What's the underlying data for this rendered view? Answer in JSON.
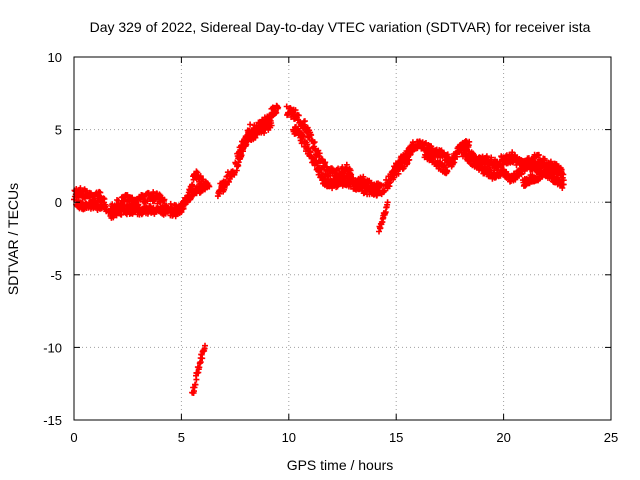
{
  "chart_data": {
    "type": "scatter",
    "title": "Day 329 of 2022, Sidereal Day-to-day VTEC variation (SDTVAR) for receiver ista",
    "xlabel": "GPS time / hours",
    "ylabel": "SDTVAR / TECUs",
    "xlim": [
      0,
      25
    ],
    "ylim": [
      -15,
      10
    ],
    "xticks": [
      0,
      5,
      10,
      15,
      20,
      25
    ],
    "yticks": [
      -15,
      -10,
      -5,
      0,
      5,
      10
    ],
    "xtick_labels": [
      "0",
      "5",
      "10",
      "15",
      "20",
      "25"
    ],
    "ytick_labels": [
      "-15",
      "-10",
      "-5",
      "0",
      "5",
      "10"
    ],
    "grid": true,
    "marker": "+",
    "series": [
      {
        "name": "SDTVAR",
        "color": "#ff0000",
        "tracks": [
          {
            "points": [
              [
                0.0,
                0.5
              ],
              [
                0.3,
                0.7
              ],
              [
                0.6,
                0.5
              ],
              [
                0.9,
                0.3
              ],
              [
                1.2,
                0.4
              ],
              [
                1.4,
                0.0
              ],
              [
                1.5,
                -0.4
              ]
            ],
            "spread": 0.35
          },
          {
            "points": [
              [
                0.1,
                -0.1
              ],
              [
                0.5,
                -0.3
              ],
              [
                0.9,
                -0.2
              ],
              [
                1.3,
                -0.4
              ]
            ],
            "spread": 0.25
          },
          {
            "points": [
              [
                1.6,
                -0.6
              ],
              [
                2.0,
                -0.2
              ],
              [
                2.4,
                0.2
              ],
              [
                2.8,
                0.0
              ],
              [
                3.2,
                0.2
              ],
              [
                3.6,
                0.4
              ],
              [
                4.0,
                0.2
              ],
              [
                4.3,
                -0.1
              ]
            ],
            "spread": 0.35
          },
          {
            "points": [
              [
                1.7,
                -0.8
              ],
              [
                2.2,
                -0.6
              ],
              [
                2.7,
                -0.5
              ],
              [
                3.2,
                -0.6
              ],
              [
                3.7,
                -0.5
              ],
              [
                4.2,
                -0.6
              ],
              [
                4.8,
                -0.7
              ],
              [
                5.0,
                -0.5
              ]
            ],
            "spread": 0.3
          },
          {
            "points": [
              [
                4.5,
                -0.4
              ],
              [
                4.9,
                -0.6
              ],
              [
                5.1,
                -0.2
              ],
              [
                5.3,
                0.5
              ],
              [
                5.5,
                1.4
              ],
              [
                5.7,
                1.8
              ],
              [
                5.9,
                1.5
              ],
              [
                6.1,
                1.2
              ],
              [
                6.3,
                1.4
              ]
            ],
            "spread": 0.35
          },
          {
            "points": [
              [
                5.0,
                -0.3
              ],
              [
                5.3,
                0.2
              ],
              [
                5.6,
                0.8
              ],
              [
                5.9,
                0.9
              ],
              [
                6.1,
                1.0
              ]
            ],
            "spread": 0.25
          },
          {
            "points": [
              [
                6.7,
                0.7
              ],
              [
                6.9,
                1.0
              ],
              [
                7.1,
                1.6
              ],
              [
                7.3,
                2.0
              ],
              [
                7.6,
                2.6
              ],
              [
                7.8,
                3.5
              ],
              [
                8.0,
                4.2
              ],
              [
                8.2,
                4.9
              ],
              [
                8.5,
                5.2
              ],
              [
                8.8,
                5.3
              ],
              [
                9.0,
                5.6
              ],
              [
                9.3,
                6.4
              ],
              [
                9.5,
                6.7
              ]
            ],
            "spread": 0.45
          },
          {
            "points": [
              [
                7.6,
                3.0
              ],
              [
                7.8,
                3.8
              ],
              [
                8.1,
                4.5
              ],
              [
                8.4,
                4.7
              ],
              [
                8.7,
                4.9
              ],
              [
                9.0,
                5.2
              ],
              [
                9.2,
                5.5
              ]
            ],
            "spread": 0.35
          },
          {
            "points": [
              [
                9.9,
                6.3
              ],
              [
                10.2,
                6.1
              ],
              [
                10.6,
                5.6
              ],
              [
                10.9,
                4.8
              ],
              [
                11.2,
                3.8
              ],
              [
                11.5,
                2.8
              ],
              [
                11.8,
                2.1
              ],
              [
                12.1,
                1.9
              ],
              [
                12.4,
                2.0
              ],
              [
                12.7,
                2.2
              ],
              [
                12.9,
                2.1
              ]
            ],
            "spread": 0.4
          },
          {
            "points": [
              [
                10.2,
                5.1
              ],
              [
                10.6,
                4.4
              ],
              [
                11.0,
                3.3
              ],
              [
                11.3,
                2.5
              ],
              [
                11.6,
                1.6
              ],
              [
                11.9,
                1.2
              ],
              [
                12.2,
                1.3
              ],
              [
                12.6,
                1.5
              ],
              [
                13.0,
                1.3
              ],
              [
                13.4,
                1.0
              ],
              [
                13.8,
                0.8
              ],
              [
                14.2,
                1.0
              ]
            ],
            "spread": 0.35
          },
          {
            "points": [
              [
                12.8,
                1.4
              ],
              [
                13.1,
                1.2
              ],
              [
                13.4,
                1.5
              ],
              [
                13.7,
                1.2
              ],
              [
                14.0,
                0.8
              ],
              [
                14.3,
                0.9
              ],
              [
                14.6,
                1.3
              ],
              [
                14.9,
                1.9
              ],
              [
                15.2,
                2.4
              ],
              [
                15.5,
                3.0
              ],
              [
                15.8,
                3.8
              ]
            ],
            "spread": 0.4
          },
          {
            "points": [
              [
                14.9,
                2.2
              ],
              [
                15.3,
                3.0
              ],
              [
                15.7,
                3.7
              ],
              [
                16.1,
                4.0
              ],
              [
                16.5,
                3.7
              ],
              [
                17.0,
                3.4
              ],
              [
                17.4,
                3.0
              ],
              [
                17.7,
                2.8
              ]
            ],
            "spread": 0.3
          },
          {
            "points": [
              [
                16.3,
                3.4
              ],
              [
                16.7,
                3.0
              ],
              [
                17.0,
                2.5
              ],
              [
                17.3,
                2.2
              ],
              [
                17.6,
                2.8
              ],
              [
                17.9,
                3.6
              ],
              [
                18.2,
                4.0
              ],
              [
                18.4,
                3.9
              ]
            ],
            "spread": 0.3
          },
          {
            "points": [
              [
                18.0,
                3.6
              ],
              [
                18.4,
                3.2
              ],
              [
                18.8,
                2.8
              ],
              [
                19.2,
                2.9
              ],
              [
                19.6,
                2.7
              ],
              [
                20.0,
                2.9
              ],
              [
                20.4,
                3.1
              ],
              [
                20.8,
                2.6
              ],
              [
                21.2,
                2.8
              ],
              [
                21.6,
                3.0
              ],
              [
                22.0,
                2.6
              ],
              [
                22.4,
                2.3
              ],
              [
                22.7,
                2.2
              ]
            ],
            "spread": 0.35
          },
          {
            "points": [
              [
                18.3,
                3.0
              ],
              [
                18.7,
                2.7
              ],
              [
                19.1,
                2.2
              ],
              [
                19.5,
                1.9
              ],
              [
                19.9,
                2.1
              ],
              [
                20.3,
                1.6
              ],
              [
                20.7,
                2.0
              ],
              [
                21.1,
                2.6
              ],
              [
                21.5,
                2.4
              ],
              [
                21.9,
                2.1
              ],
              [
                22.3,
                2.4
              ],
              [
                22.8,
                1.8
              ]
            ],
            "spread": 0.3
          },
          {
            "points": [
              [
                20.9,
                1.3
              ],
              [
                21.3,
                1.6
              ],
              [
                21.8,
                1.9
              ],
              [
                22.3,
                1.7
              ],
              [
                22.8,
                1.2
              ]
            ],
            "spread": 0.3
          },
          {
            "points": [
              [
                5.5,
                -13.3
              ],
              [
                5.7,
                -12.0
              ],
              [
                5.9,
                -10.8
              ],
              [
                6.1,
                -10.0
              ]
            ],
            "spread": 0.3
          },
          {
            "points": [
              [
                14.2,
                -1.8
              ],
              [
                14.4,
                -1.0
              ],
              [
                14.6,
                -0.2
              ]
            ],
            "spread": 0.25
          }
        ]
      }
    ]
  }
}
